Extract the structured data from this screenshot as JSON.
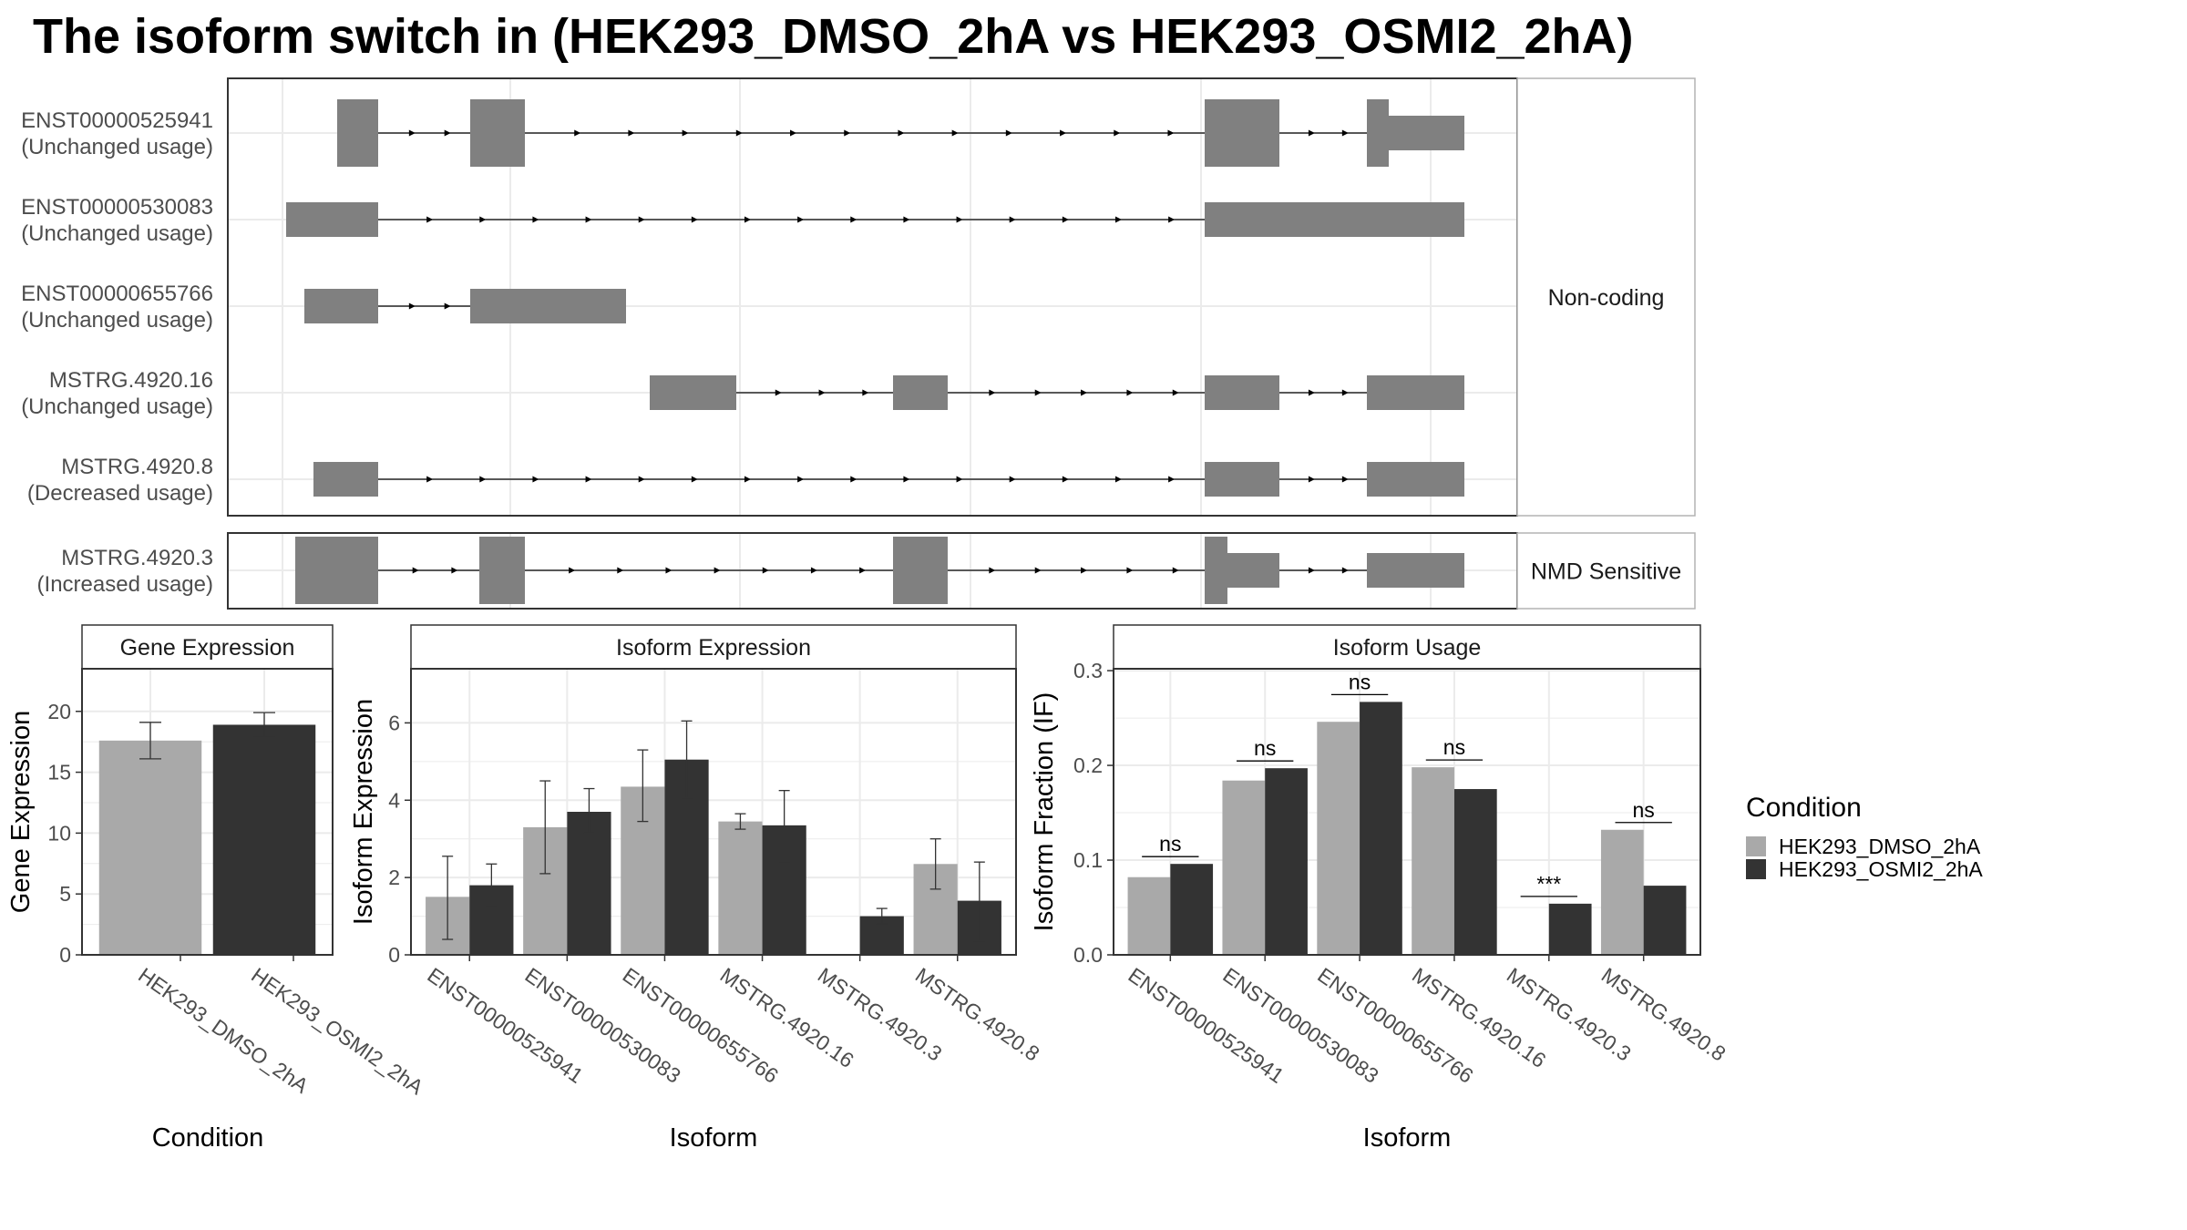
{
  "title": "The isoform switch in  (HEK293_DMSO_2hA vs HEK293_OSMI2_2hA)",
  "colors": {
    "dmso": "#a9a9a9",
    "osmi2": "#333333",
    "exon": "#808080",
    "panel_border": "#333333",
    "strip_fill": "#ffffff",
    "grid": "#ebebeb",
    "text": "#4d4d4d"
  },
  "structure": {
    "groups": [
      {
        "label": "Non-coding",
        "isoforms": [
          {
            "id": "ENST00000525941",
            "usage": "(Unchanged usage)"
          },
          {
            "id": "ENST00000530083",
            "usage": "(Unchanged usage)"
          },
          {
            "id": "ENST00000655766",
            "usage": "(Unchanged usage)"
          },
          {
            "id": "MSTRG.4920.16",
            "usage": "(Unchanged usage)"
          },
          {
            "id": "MSTRG.4920.8",
            "usage": "(Decreased usage)"
          }
        ]
      },
      {
        "label": "NMD Sensitive",
        "isoforms": [
          {
            "id": "MSTRG.4920.3",
            "usage": "(Increased usage)"
          }
        ]
      }
    ]
  },
  "chart_data": [
    {
      "type": "bar",
      "title": "Gene Expression",
      "xlabel": "Condition",
      "ylabel": "Gene Expression",
      "ylim": [
        0,
        23.5
      ],
      "yticks": [
        0,
        5,
        10,
        15,
        20
      ],
      "grid": true,
      "categories": [
        "HEK293_DMSO_2hA",
        "HEK293_OSMI2_2hA"
      ],
      "values": [
        17.6,
        18.9
      ],
      "errors": [
        [
          16.1,
          19.1
        ],
        [
          17.9,
          19.9
        ]
      ]
    },
    {
      "type": "bar",
      "title": "Isoform Expression",
      "xlabel": "Isoform",
      "ylabel": "Isoform Expression",
      "ylim": [
        0,
        7.4
      ],
      "yticks": [
        0,
        2,
        4,
        6
      ],
      "grid": true,
      "categories": [
        "ENST00000525941",
        "ENST00000530083",
        "ENST00000655766",
        "MSTRG.4920.16",
        "MSTRG.4920.3",
        "MSTRG.4920.8"
      ],
      "series": [
        {
          "name": "HEK293_DMSO_2hA",
          "values": [
            1.5,
            3.3,
            4.35,
            3.45,
            0.0,
            2.35
          ],
          "errors": [
            [
              0.4,
              2.55
            ],
            [
              2.1,
              4.5
            ],
            [
              3.45,
              5.3
            ],
            [
              3.25,
              3.65
            ],
            [
              0.0,
              0.0
            ],
            [
              1.7,
              3.0
            ]
          ]
        },
        {
          "name": "HEK293_OSMI2_2hA",
          "values": [
            1.8,
            3.7,
            5.05,
            3.35,
            1.0,
            1.4
          ],
          "errors": [
            [
              1.25,
              2.35
            ],
            [
              3.15,
              4.3
            ],
            [
              4.05,
              6.05
            ],
            [
              2.4,
              4.25
            ],
            [
              0.8,
              1.2
            ],
            [
              0.35,
              2.4
            ]
          ]
        }
      ]
    },
    {
      "type": "bar",
      "title": "Isoform Usage",
      "xlabel": "Isoform",
      "ylabel": "Isoform Fraction (IF)",
      "ylim": [
        0,
        0.302
      ],
      "yticks": [
        0.0,
        0.1,
        0.2,
        0.3
      ],
      "ytick_labels": [
        "0.0",
        "0.1",
        "0.2",
        "0.3"
      ],
      "grid": true,
      "categories": [
        "ENST00000525941",
        "ENST00000530083",
        "ENST00000655766",
        "MSTRG.4920.16",
        "MSTRG.4920.3",
        "MSTRG.4920.8"
      ],
      "series": [
        {
          "name": "HEK293_DMSO_2hA",
          "values": [
            0.082,
            0.184,
            0.246,
            0.198,
            0.0,
            0.132
          ]
        },
        {
          "name": "HEK293_OSMI2_2hA",
          "values": [
            0.096,
            0.197,
            0.267,
            0.175,
            0.054,
            0.073
          ]
        }
      ],
      "significance": [
        "ns",
        "ns",
        "ns",
        "ns",
        "***",
        "ns"
      ]
    }
  ],
  "legend": {
    "title": "Condition",
    "placement": "right",
    "items": [
      "HEK293_DMSO_2hA",
      "HEK293_OSMI2_2hA"
    ]
  }
}
